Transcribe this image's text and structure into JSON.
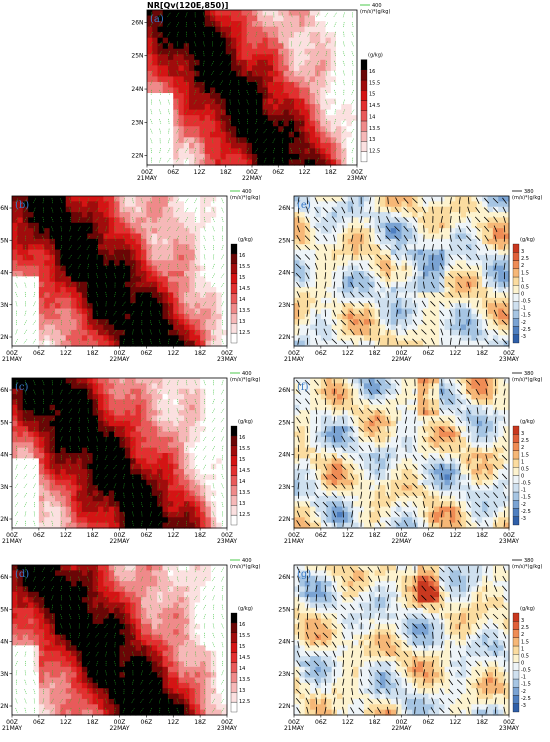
{
  "colors": {
    "qv_shades": [
      "#ffffff",
      "#fbe0e0",
      "#f6b8b8",
      "#ef8a8a",
      "#e85a5a",
      "#e23030",
      "#d41414",
      "#a00c0c",
      "#6a0606",
      "#000000"
    ],
    "diff_shades": [
      "#2f5fa8",
      "#4f7fc0",
      "#7aa3d3",
      "#a6c5e3",
      "#cfe0ef",
      "#eef4f8",
      "#fdf3cf",
      "#fbdca0",
      "#f6b777",
      "#ef8c55",
      "#e0603a",
      "#c8381f"
    ],
    "vector_green": "#22bb22",
    "vector_black": "#000000",
    "plabel": "#3a7ac8"
  },
  "chart_data": [
    {
      "id": "a",
      "type": "heatmap",
      "variable": "qv",
      "title": "NR[Qv(120E,850)]",
      "panel_label": "(a)",
      "unit_label": "(g/kg)",
      "vector_ref_value": "400",
      "vector_ref_unit": "(m/s)*(g/kg)",
      "vectors": "green",
      "x_ticks": [
        "00Z",
        "06Z",
        "12Z",
        "18Z",
        "00Z",
        "06Z",
        "12Z",
        "18Z",
        "00Z"
      ],
      "x_date_labels": [
        "21MAY",
        "",
        "",
        "",
        "22MAY",
        "",
        "",
        "",
        "23MAY"
      ],
      "y_ticks": [
        "22N",
        "23N",
        "24N",
        "25N",
        "26N"
      ],
      "colorbar_labels": [
        "12.5",
        "13",
        "13.5",
        "14",
        "14.5",
        "15",
        "15.5",
        "16"
      ]
    },
    {
      "id": "b",
      "type": "heatmap",
      "variable": "qv",
      "title": "",
      "panel_label": "(b)",
      "unit_label": "(g/kg)",
      "vector_ref_value": "400",
      "vector_ref_unit": "(m/s)*(g/kg)",
      "vectors": "green",
      "x_ticks": [
        "00Z",
        "06Z",
        "12Z",
        "18Z",
        "00Z",
        "06Z",
        "12Z",
        "18Z",
        "00Z"
      ],
      "x_date_labels": [
        "21MAY",
        "",
        "",
        "",
        "22MAY",
        "",
        "",
        "",
        "23MAY"
      ],
      "y_ticks": [
        "22N",
        "23N",
        "24N",
        "25N",
        "26N"
      ],
      "colorbar_labels": [
        "12.5",
        "13",
        "13.5",
        "14",
        "14.5",
        "15",
        "15.5",
        "16"
      ]
    },
    {
      "id": "e",
      "type": "heatmap",
      "variable": "diff",
      "title": "",
      "panel_label": "(e)",
      "unit_label": "(g/kg)",
      "vector_ref_value": "380",
      "vector_ref_unit": "(m/s)*(g/kg)",
      "vectors": "black",
      "x_ticks": [
        "00Z",
        "06Z",
        "12Z",
        "18Z",
        "00Z",
        "06Z",
        "12Z",
        "18Z",
        "00Z"
      ],
      "x_date_labels": [
        "21MAY",
        "",
        "",
        "",
        "22MAY",
        "",
        "",
        "",
        "23MAY"
      ],
      "y_ticks": [
        "22N",
        "23N",
        "24N",
        "25N",
        "26N"
      ],
      "colorbar_labels": [
        "-3",
        "-2.5",
        "-2",
        "-1.5",
        "-1",
        "-0.5",
        "0",
        "0.5",
        "1",
        "1.5",
        "2",
        "2.5",
        "3"
      ]
    },
    {
      "id": "c",
      "type": "heatmap",
      "variable": "qv",
      "title": "",
      "panel_label": "(c)",
      "unit_label": "(g/kg)",
      "vector_ref_value": "400",
      "vector_ref_unit": "(m/s)*(g/kg)",
      "vectors": "green",
      "x_ticks": [
        "00Z",
        "06Z",
        "12Z",
        "18Z",
        "00Z",
        "06Z",
        "12Z",
        "18Z",
        "00Z"
      ],
      "x_date_labels": [
        "21MAY",
        "",
        "",
        "",
        "22MAY",
        "",
        "",
        "",
        "23MAY"
      ],
      "y_ticks": [
        "22N",
        "23N",
        "24N",
        "25N",
        "26N"
      ],
      "colorbar_labels": [
        "12.5",
        "13",
        "13.5",
        "14",
        "14.5",
        "15",
        "15.5",
        "16"
      ]
    },
    {
      "id": "f",
      "type": "heatmap",
      "variable": "diff",
      "title": "",
      "panel_label": "(f)",
      "unit_label": "(g/kg)",
      "vector_ref_value": "380",
      "vector_ref_unit": "(m/s)*(g/kg)",
      "vectors": "black",
      "x_ticks": [
        "00Z",
        "06Z",
        "12Z",
        "18Z",
        "00Z",
        "06Z",
        "12Z",
        "18Z",
        "00Z"
      ],
      "x_date_labels": [
        "21MAY",
        "",
        "",
        "",
        "22MAY",
        "",
        "",
        "",
        "23MAY"
      ],
      "y_ticks": [
        "22N",
        "23N",
        "24N",
        "25N",
        "26N"
      ],
      "colorbar_labels": [
        "-3",
        "-2.5",
        "-2",
        "-1.5",
        "-1",
        "-0.5",
        "0",
        "0.5",
        "1",
        "1.5",
        "2",
        "2.5",
        "3"
      ]
    },
    {
      "id": "d",
      "type": "heatmap",
      "variable": "qv",
      "title": "",
      "panel_label": "(d)",
      "unit_label": "(g/kg)",
      "vector_ref_value": "400",
      "vector_ref_unit": "(m/s)*(g/kg)",
      "vectors": "green",
      "x_ticks": [
        "00Z",
        "06Z",
        "12Z",
        "18Z",
        "00Z",
        "06Z",
        "12Z",
        "18Z",
        "00Z"
      ],
      "x_date_labels": [
        "21MAY",
        "",
        "",
        "",
        "22MAY",
        "",
        "",
        "",
        "23MAY"
      ],
      "y_ticks": [
        "22N",
        "23N",
        "24N",
        "25N",
        "26N"
      ],
      "colorbar_labels": [
        "12.5",
        "13",
        "13.5",
        "14",
        "14.5",
        "15",
        "15.5",
        "16"
      ]
    },
    {
      "id": "g",
      "type": "heatmap",
      "variable": "diff",
      "title": "",
      "panel_label": "(g)",
      "unit_label": "(g/kg)",
      "vector_ref_value": "380",
      "vector_ref_unit": "(m/s)*(g/kg)",
      "vectors": "black",
      "x_ticks": [
        "00Z",
        "06Z",
        "12Z",
        "18Z",
        "00Z",
        "06Z",
        "12Z",
        "18Z",
        "00Z"
      ],
      "x_date_labels": [
        "21MAY",
        "",
        "",
        "",
        "22MAY",
        "",
        "",
        "",
        "23MAY"
      ],
      "y_ticks": [
        "22N",
        "23N",
        "24N",
        "25N",
        "26N"
      ],
      "colorbar_labels": [
        "-3",
        "-2.5",
        "-2",
        "-1.5",
        "-1",
        "-0.5",
        "0",
        "0.5",
        "1",
        "1.5",
        "2",
        "2.5",
        "3"
      ]
    }
  ]
}
